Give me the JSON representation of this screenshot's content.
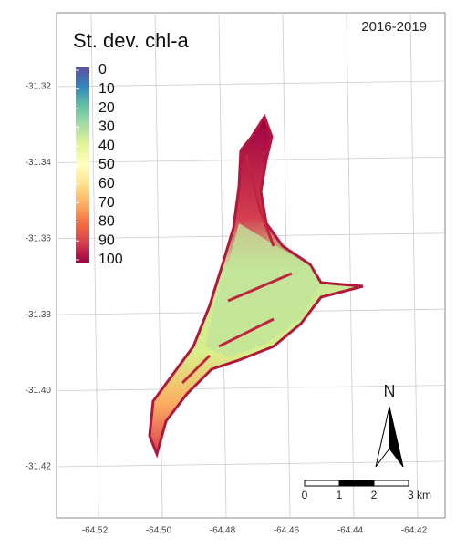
{
  "map": {
    "title": "St. dev. chl-a",
    "period": "2016-2019",
    "legend": {
      "labels": [
        "0",
        "10",
        "20",
        "30",
        "40",
        "50",
        "60",
        "70",
        "80",
        "90",
        "100"
      ],
      "colors": [
        "#5e4fa2",
        "#3288bd",
        "#66c2a5",
        "#abdda4",
        "#e6f598",
        "#ffffbf",
        "#fee08b",
        "#fdae61",
        "#f46d43",
        "#d53e4f",
        "#9e0142"
      ]
    },
    "lat_ticks": [
      -31.32,
      -31.34,
      -31.36,
      -31.38,
      {
        "value": -31.4,
        "label": "-31.40"
      },
      -31.42
    ],
    "lon_ticks": [
      -64.52,
      {
        "value": -64.5,
        "label": "-64.50"
      },
      -64.48,
      -64.46,
      -64.44,
      -64.42
    ],
    "scale_bar": {
      "labels": [
        "0",
        "1",
        "2",
        "3 km"
      ]
    },
    "north_label": "N"
  }
}
